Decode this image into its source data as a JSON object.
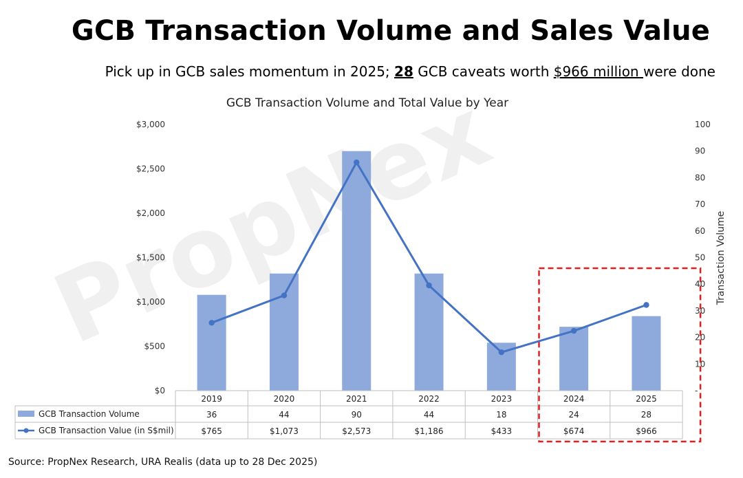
{
  "title": "GCB Transaction Volume and Sales Value",
  "subtitle": {
    "part1": "Pick up in GCB sales momentum in 2025; ",
    "count": "28",
    "part2": " GCB caveats worth ",
    "amount": "$966 million ",
    "part3": "were done"
  },
  "watermark": "PropNex",
  "source": "Source: PropNex Research, URA Realis (data up to 28 Dec 2025)",
  "chart_data": {
    "type": "bar",
    "title": "GCB Transaction Volume and Total Value by Year",
    "categories": [
      "2019",
      "2020",
      "2021",
      "2022",
      "2023",
      "2024",
      "2025"
    ],
    "series": [
      {
        "name": "GCB Transaction Volume",
        "kind": "bar",
        "axis": "right",
        "color": "#8EA9DB",
        "values": [
          36,
          44,
          90,
          44,
          18,
          24,
          28
        ]
      },
      {
        "name": "GCB Transaction Value (in S$mil)",
        "kind": "line",
        "axis": "left",
        "color": "#4472C4",
        "values": [
          765,
          1073,
          2573,
          1186,
          433,
          674,
          966
        ]
      }
    ],
    "table_values": [
      [
        "36",
        "44",
        "90",
        "44",
        "18",
        "24",
        "28"
      ],
      [
        "$765",
        "$1,073",
        "$2,573",
        "$1,186",
        "$433",
        "$674",
        "$966"
      ]
    ],
    "y_left": {
      "ylim": [
        0,
        3000
      ],
      "ticks": [
        "$0",
        "$500",
        "$1,000",
        "$1,500",
        "$2,000",
        "$2,500",
        "$3,000"
      ]
    },
    "y_right": {
      "ylim": [
        0,
        100
      ],
      "label": "Transaction Volume",
      "ticks": [
        "-",
        "10",
        "20",
        "30",
        "40",
        "50",
        "60",
        "70",
        "80",
        "90",
        "100"
      ]
    },
    "highlight": {
      "categories": [
        "2024",
        "2025"
      ],
      "style": "dashed box",
      "color": "#E02020"
    },
    "grid": false
  }
}
